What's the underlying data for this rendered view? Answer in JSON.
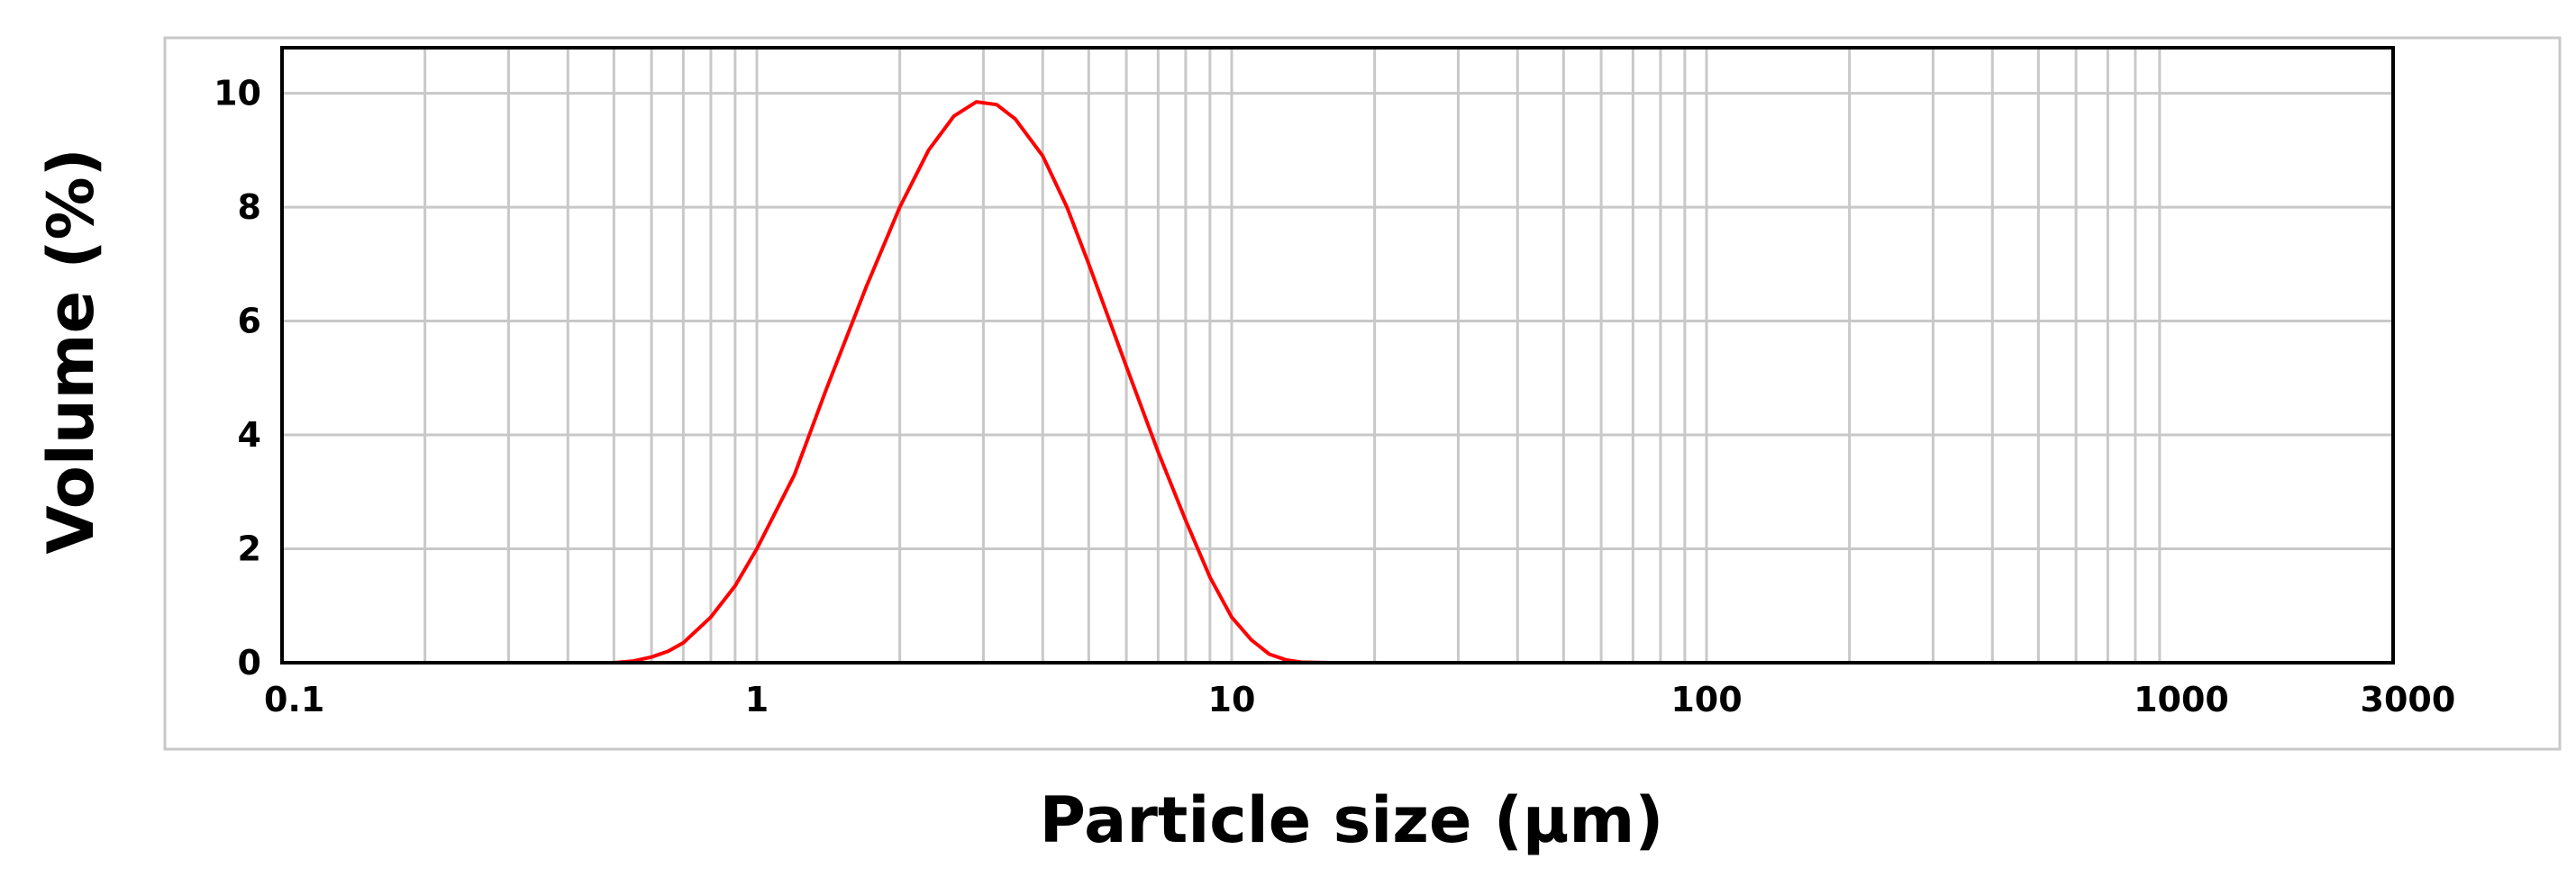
{
  "chart_data": {
    "type": "line",
    "xlabel": "Particle size (µm)",
    "ylabel": "Volume (%)",
    "x_scale": "log",
    "xlim": [
      0.1,
      3000
    ],
    "ylim": [
      0,
      10.8
    ],
    "x_ticks": [
      0.1,
      1,
      10,
      100,
      1000,
      3000
    ],
    "x_tick_labels": [
      "0.1",
      "1",
      "10",
      "100",
      "1000",
      "3000"
    ],
    "y_ticks": [
      0,
      2,
      4,
      6,
      8,
      10
    ],
    "y_tick_labels": [
      "0",
      "2",
      "4",
      "6",
      "8",
      "10"
    ],
    "grid": true,
    "series": [
      {
        "color": "#ff0000",
        "x": [
          0.1,
          0.5,
          0.55,
          0.6,
          0.65,
          0.7,
          0.8,
          0.9,
          1.0,
          1.2,
          1.4,
          1.7,
          2.0,
          2.3,
          2.6,
          2.9,
          3.2,
          3.5,
          4.0,
          4.5,
          5.0,
          6.0,
          7.0,
          8.0,
          9.0,
          10.0,
          11.0,
          12.0,
          13.0,
          14.0,
          16.0,
          20.0,
          100.0,
          1000.0,
          2000.0
        ],
        "y": [
          0,
          0,
          0.03,
          0.1,
          0.2,
          0.35,
          0.8,
          1.35,
          2.0,
          3.3,
          4.8,
          6.6,
          8.0,
          9.0,
          9.6,
          9.85,
          9.8,
          9.55,
          8.9,
          8.0,
          7.0,
          5.2,
          3.7,
          2.5,
          1.5,
          0.8,
          0.4,
          0.15,
          0.05,
          0.01,
          0,
          0,
          0,
          0,
          0
        ]
      }
    ]
  }
}
